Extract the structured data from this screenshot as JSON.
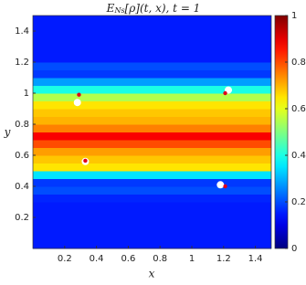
{
  "chart_data": {
    "type": "heatmap",
    "title": [
      "E",
      "Ns",
      "[ρ](t, x), t = 1"
    ],
    "x_label": "x",
    "y_label": "y",
    "xlim": [
      0,
      1.5
    ],
    "ylim": [
      0,
      1.5
    ],
    "xticks": [
      0.2,
      0.4,
      0.6,
      0.8,
      1,
      1.2,
      1.4
    ],
    "yticks": [
      0.2,
      0.4,
      0.6,
      0.8,
      1,
      1.2,
      1.4
    ],
    "clim": [
      0,
      1
    ],
    "cticks": [
      0,
      0.2,
      0.4,
      0.6,
      0.8,
      1
    ],
    "colormap": "jet",
    "ybins": [
      0,
      0.05,
      0.1,
      0.15,
      0.2,
      0.25,
      0.3,
      0.35,
      0.4,
      0.45,
      0.5,
      0.55,
      0.6,
      0.65,
      0.7,
      0.75,
      0.8,
      0.85,
      0.9,
      0.95,
      1,
      1.05,
      1.1,
      1.15,
      1.2,
      1.25,
      1.3,
      1.35,
      1.4,
      1.45,
      1.5
    ],
    "values": [
      0.15,
      0.15,
      0.15,
      0.15,
      0.15,
      0.15,
      0.16,
      0.2,
      0.18,
      0.35,
      0.65,
      0.68,
      0.72,
      0.8,
      0.88,
      0.75,
      0.7,
      0.68,
      0.65,
      0.55,
      0.4,
      0.28,
      0.18,
      0.2,
      0.15,
      0.15,
      0.15,
      0.15,
      0.15,
      0.15
    ],
    "series": [
      {
        "color": "#ffffff",
        "x": [
          0.28,
          1.23,
          0.33,
          1.18
        ],
        "values": [
          0.94,
          1.02,
          0.56,
          0.41
        ]
      },
      {
        "color": "#e0001b",
        "x": [
          0.29,
          1.21,
          0.33,
          1.21
        ],
        "values": [
          0.99,
          1.0,
          0.565,
          0.4
        ]
      }
    ]
  }
}
